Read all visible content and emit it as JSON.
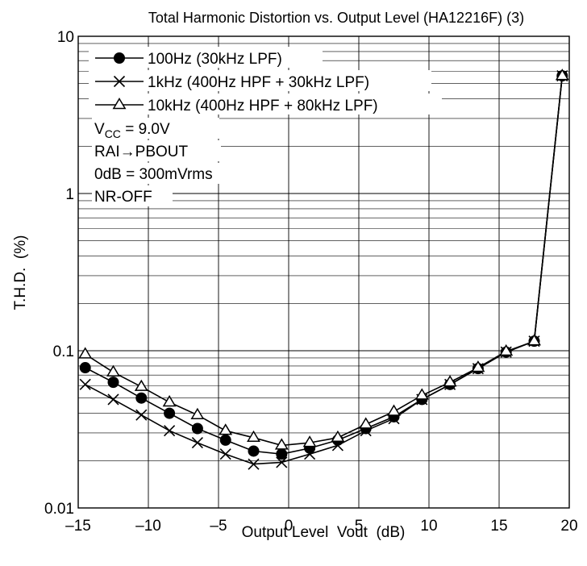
{
  "chart_data": {
    "type": "line",
    "title": "Total Harmonic Distortion vs. Output Level (HA12216F) (3)",
    "xlabel": "Output Level  Vout  (dB)",
    "ylabel": "T.H.D.  (%)",
    "xlim": [
      -15,
      20
    ],
    "ylim": [
      0.01,
      10
    ],
    "yscale": "log",
    "grid": true,
    "legend_position": "top-left",
    "x_ticks": [
      "–15",
      "–10",
      "–5",
      "0",
      "5",
      "10",
      "15",
      "20"
    ],
    "x_tick_values": [
      -15,
      -10,
      -5,
      0,
      5,
      10,
      15,
      20
    ],
    "y_ticks": [
      "0.01",
      "0.1",
      "1",
      "10"
    ],
    "y_tick_values": [
      0.01,
      0.1,
      1,
      10
    ],
    "series": [
      {
        "name": "100Hz (30kHz LPF)",
        "marker": "filled-circle",
        "x": [
          -14.5,
          -12.5,
          -10.5,
          -8.5,
          -6.5,
          -4.5,
          -2.5,
          -0.5,
          1.5,
          3.5,
          5.5,
          7.5,
          9.5,
          11.5,
          13.5,
          15.5,
          17.5,
          19.5
        ],
        "y": [
          0.078,
          0.063,
          0.05,
          0.04,
          0.032,
          0.027,
          0.023,
          0.022,
          0.024,
          0.027,
          0.032,
          0.038,
          0.049,
          0.061,
          0.077,
          0.098,
          0.115,
          5.6
        ]
      },
      {
        "name": "1kHz (400Hz HPF + 30kHz LPF)",
        "marker": "cross",
        "x": [
          -14.5,
          -12.5,
          -10.5,
          -8.5,
          -6.5,
          -4.5,
          -2.5,
          -0.5,
          1.5,
          3.5,
          5.5,
          7.5,
          9.5,
          11.5,
          13.5,
          15.5,
          17.5,
          19.5
        ],
        "y": [
          0.061,
          0.049,
          0.039,
          0.031,
          0.026,
          0.022,
          0.019,
          0.0195,
          0.022,
          0.025,
          0.031,
          0.037,
          0.049,
          0.061,
          0.077,
          0.098,
          0.115,
          5.6
        ]
      },
      {
        "name": "10kHz (400Hz HPF + 80kHz LPF)",
        "marker": "open-triangle",
        "x": [
          -14.5,
          -12.5,
          -10.5,
          -8.5,
          -6.5,
          -4.5,
          -2.5,
          -0.5,
          1.5,
          3.5,
          5.5,
          7.5,
          9.5,
          11.5,
          13.5,
          15.5,
          17.5,
          19.5
        ],
        "y": [
          0.095,
          0.073,
          0.059,
          0.047,
          0.039,
          0.031,
          0.028,
          0.025,
          0.026,
          0.028,
          0.034,
          0.041,
          0.052,
          0.063,
          0.078,
          0.099,
          0.115,
          5.6
        ]
      }
    ],
    "annotations": {
      "vcc_main": "V",
      "vcc_sub": "CC",
      "vcc_value": " = 9.0V",
      "route": "RAI→PBOUT",
      "reference": "0dB = 300mVrms",
      "nr": "NR-OFF"
    }
  }
}
